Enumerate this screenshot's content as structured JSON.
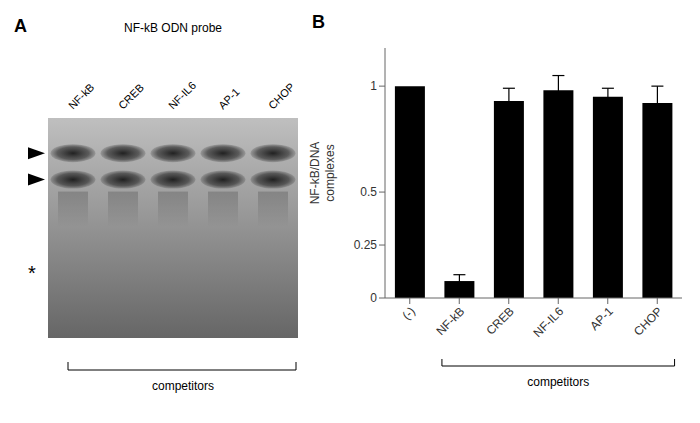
{
  "chart_data": [
    {
      "type": "image",
      "title": "NF-kB ODN probe",
      "categories": [
        "NF-kB",
        "CREB",
        "NF-IL6",
        "AP-1",
        "CHOP"
      ],
      "xlabel": "competitors",
      "annotations": [
        "A",
        "*"
      ]
    },
    {
      "type": "bar",
      "categories": [
        "(-)",
        "NF-kB",
        "CREB",
        "NF-IL6",
        "AP-1",
        "CHOP"
      ],
      "values": [
        1.0,
        0.08,
        0.93,
        0.98,
        0.95,
        0.92
      ],
      "errors": [
        0.0,
        0.03,
        0.06,
        0.07,
        0.04,
        0.08
      ],
      "color": "#000000",
      "ylabel": "NF-kB/DNA\ncomplexes",
      "ylim": [
        0,
        1.18
      ],
      "yticks": [
        0,
        0.25,
        0.5,
        1
      ],
      "xlabel": "competitors",
      "annotations": [
        "B"
      ],
      "grid": false
    }
  ]
}
